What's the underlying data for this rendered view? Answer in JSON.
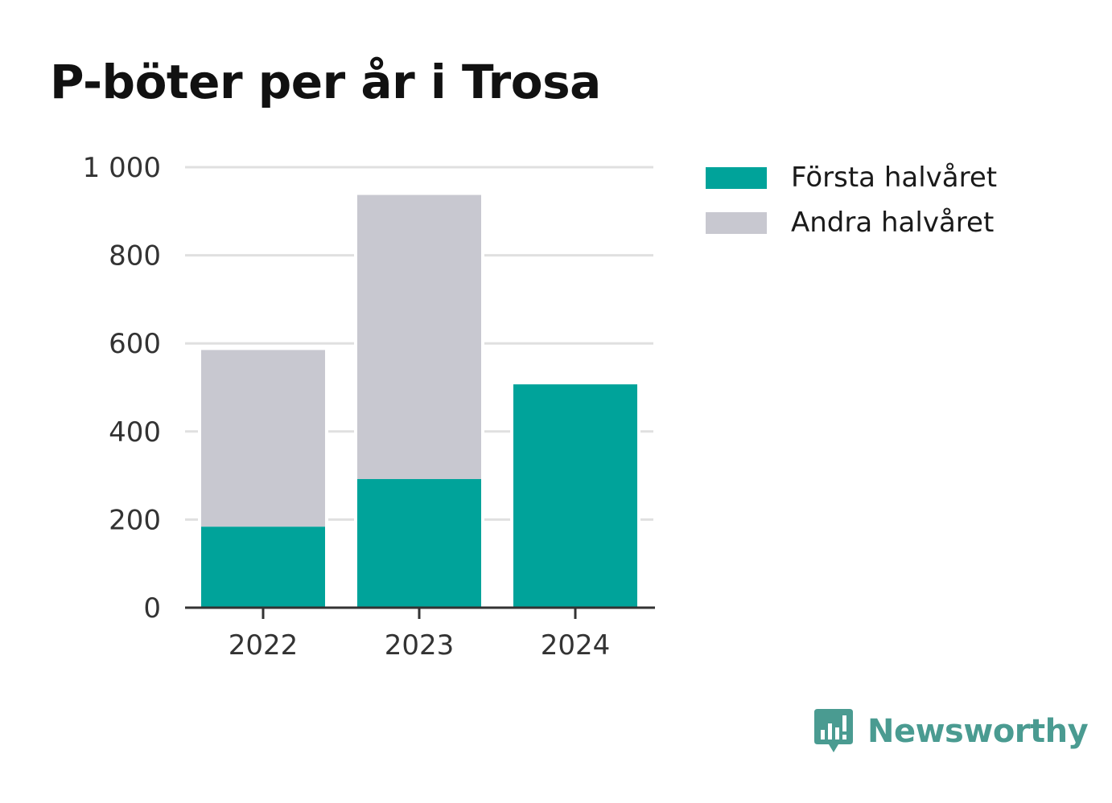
{
  "colors": {
    "first_half": "#00a39a",
    "second_half": "#c8c8d0",
    "grid": "#e0e0e0",
    "axis": "#333333",
    "brand": "#4a9b91"
  },
  "chart_data": {
    "type": "bar",
    "stacked": true,
    "title": "P-böter per år i Trosa",
    "categories": [
      "2022",
      "2023",
      "2024"
    ],
    "series": [
      {
        "name": "Första halvåret",
        "values": [
          184,
          292,
          507
        ]
      },
      {
        "name": "Andra halvåret",
        "values": [
          401,
          645,
          0
        ]
      }
    ],
    "ylim": [
      0,
      1000
    ],
    "yticks": [
      0,
      200,
      400,
      600,
      800,
      1000
    ],
    "ytick_labels": [
      "0",
      "200",
      "400",
      "600",
      "800",
      "1 000"
    ],
    "grid": true,
    "legend_position": "top-right",
    "xlabel": "",
    "ylabel": ""
  },
  "logo": {
    "icon": "bar-chart-speech-bubble-icon",
    "text": "Newsworthy"
  }
}
